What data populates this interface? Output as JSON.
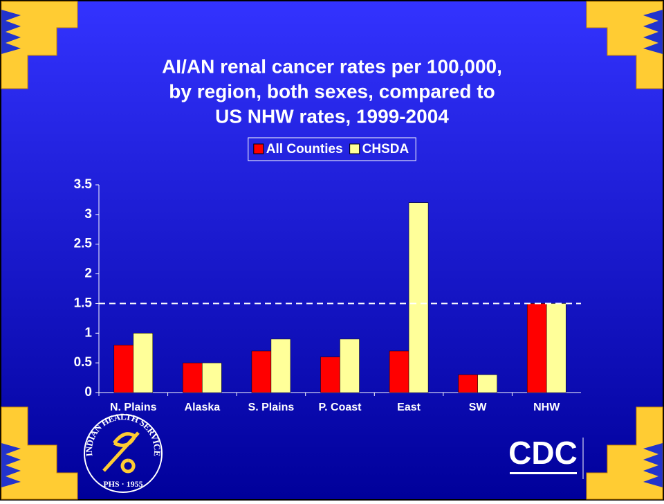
{
  "chart_data": {
    "type": "bar",
    "title": [
      "AI/AN renal cancer rates per 100,000,",
      "by region, both sexes, compared to",
      "US NHW rates, 1999-2004"
    ],
    "categories": [
      "N. Plains",
      "Alaska",
      "S. Plains",
      "P. Coast",
      "East",
      "SW",
      "NHW"
    ],
    "series": [
      {
        "name": "All Counties",
        "color": "#ff0000",
        "values": [
          0.8,
          0.5,
          0.7,
          0.6,
          0.7,
          0.3,
          1.5
        ]
      },
      {
        "name": "CHSDA",
        "color": "#ffff99",
        "values": [
          1.0,
          0.5,
          0.9,
          0.9,
          3.2,
          0.3,
          1.5
        ]
      }
    ],
    "reference_line": 1.5,
    "ylim": [
      0,
      3.5
    ],
    "yticks": [
      0,
      0.5,
      1,
      1.5,
      2,
      2.5,
      3,
      3.5
    ],
    "legend": "top",
    "grid": false
  },
  "logos": {
    "ihs": "INDIAN HEALTH SERVICE",
    "ihs_sub": "PHS · 1955",
    "cdc": "CDC"
  }
}
